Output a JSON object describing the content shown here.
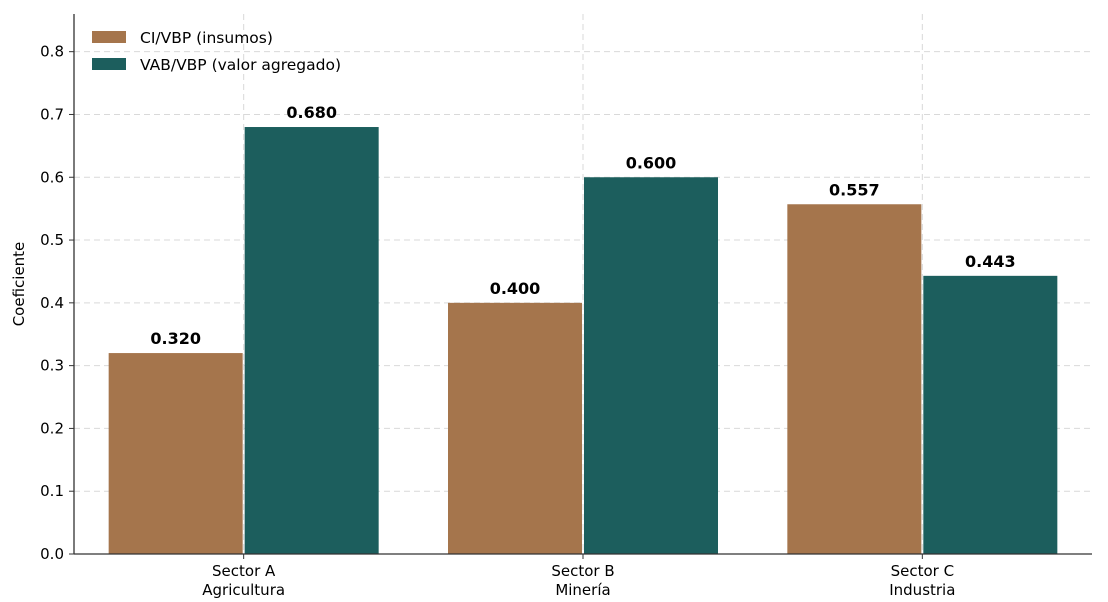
{
  "chart_data": {
    "type": "bar",
    "title": "",
    "xlabel": "",
    "ylabel": "Coeficiente",
    "categories": [
      [
        "Sector A",
        "Agricultura"
      ],
      [
        "Sector B",
        "Minería"
      ],
      [
        "Sector C",
        "Industria"
      ]
    ],
    "series": [
      {
        "name": "CI/VBP (insumos)",
        "color": "#a5754c",
        "values": [
          0.32,
          0.4,
          0.557
        ],
        "labels": [
          "0.320",
          "0.400",
          "0.557"
        ]
      },
      {
        "name": "VAB/VBP (valor agregado)",
        "color": "#1c5e5d",
        "values": [
          0.68,
          0.6,
          0.443
        ],
        "labels": [
          "0.680",
          "0.600",
          "0.443"
        ]
      }
    ],
    "ylim": [
      0,
      0.86
    ],
    "yticks": [
      "0.0",
      "0.1",
      "0.2",
      "0.3",
      "0.4",
      "0.5",
      "0.6",
      "0.7",
      "0.8"
    ],
    "grid": true,
    "legend": "top-left"
  }
}
